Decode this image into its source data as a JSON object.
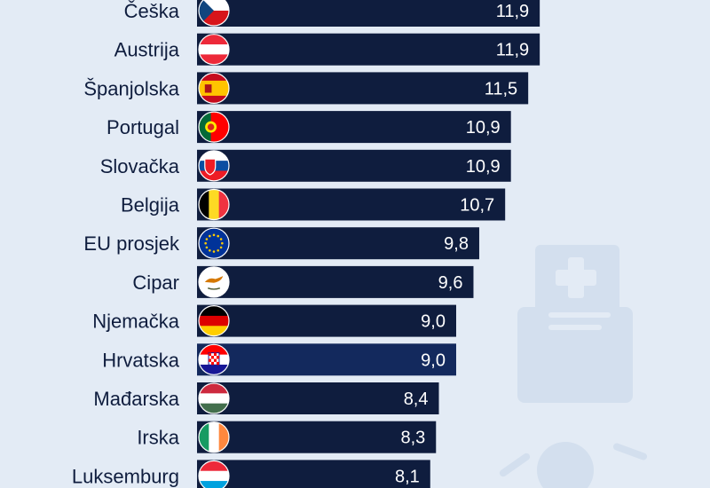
{
  "chart_data": {
    "type": "bar",
    "orientation": "horizontal",
    "categories": [
      "Češka",
      "Austrija",
      "Španjolska",
      "Portugal",
      "Slovačka",
      "Belgija",
      "EU prosjek",
      "Cipar",
      "Njemačka",
      "Hrvatska",
      "Mađarska",
      "Irska",
      "Luksemburg"
    ],
    "values": [
      11.9,
      11.9,
      11.5,
      10.9,
      10.9,
      10.7,
      9.8,
      9.6,
      9.0,
      9.0,
      8.4,
      8.3,
      8.1
    ],
    "value_labels": [
      "11,9",
      "11,9",
      "11,5",
      "10,9",
      "10,9",
      "10,7",
      "9,8",
      "9,6",
      "9,0",
      "9,0",
      "8,4",
      "8,3",
      "8,1"
    ],
    "flags": [
      "czech-flag-icon",
      "austria-flag-icon",
      "spain-flag-icon",
      "portugal-flag-icon",
      "slovakia-flag-icon",
      "belgium-flag-icon",
      "eu-flag-icon",
      "cyprus-flag-icon",
      "germany-flag-icon",
      "croatia-flag-icon",
      "hungary-flag-icon",
      "ireland-flag-icon",
      "luxembourg-flag-icon"
    ],
    "highlight": "Hrvatska",
    "colors": {
      "bar": "#0f1d3e",
      "bar_highlight": "#13295d",
      "background": "#e3ebf5",
      "label": "#0f1d3e",
      "value": "#ffffff"
    },
    "grid": false,
    "legend": "none"
  }
}
